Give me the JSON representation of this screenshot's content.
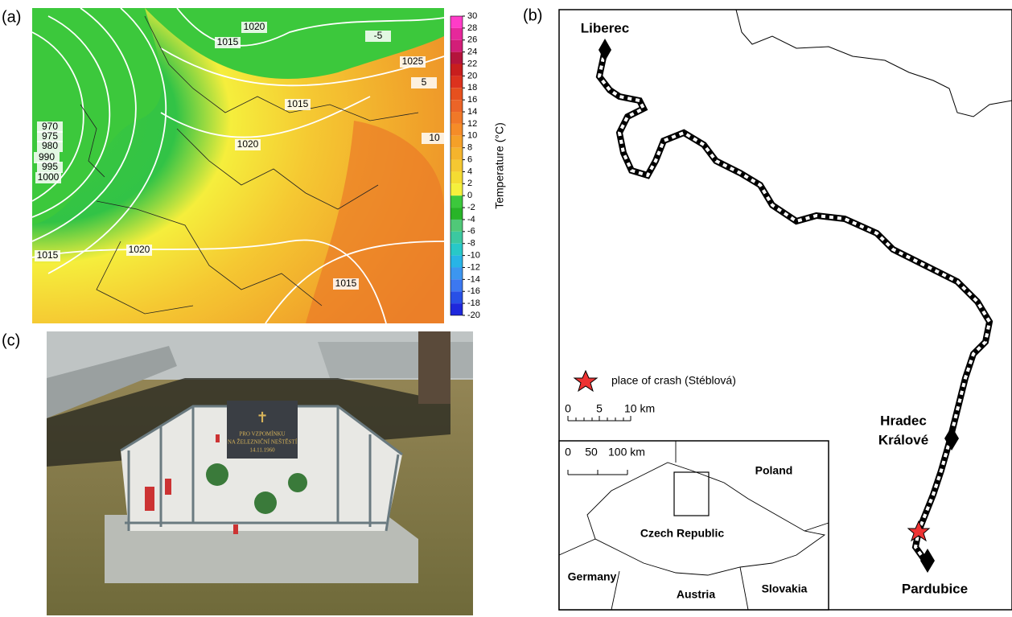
{
  "panel_labels": [
    "(a)",
    "(b)",
    "(c)"
  ],
  "weather_map": {
    "isobar_labels": [
      "1020",
      "1015",
      "1025",
      "1015",
      "1020",
      "970",
      "975",
      "980",
      "990",
      "995",
      "1000",
      "1015",
      "1020",
      "1015",
      "-5",
      "5",
      "10"
    ],
    "colorbar": {
      "label": "Temperature (°C)",
      "ticks": [
        30,
        28,
        26,
        24,
        22,
        20,
        18,
        16,
        14,
        12,
        10,
        8,
        6,
        4,
        2,
        0,
        -2,
        -4,
        -6,
        -8,
        -10,
        -12,
        -14,
        -16,
        -18,
        -20
      ],
      "colors": [
        "#ff3cc8",
        "#e6289b",
        "#d21e78",
        "#b4143c",
        "#c81e1e",
        "#dc321e",
        "#e6501e",
        "#eb6428",
        "#f07828",
        "#f58c28",
        "#f5a028",
        "#f5b42d",
        "#f5c832",
        "#f5dc32",
        "#f5f03c",
        "#3cc83c",
        "#28b428",
        "#50c878",
        "#3cc8a0",
        "#28c8c8",
        "#28b4e6",
        "#3c96f0",
        "#3c78f0",
        "#2850e6",
        "#1e28dc"
      ]
    }
  },
  "photo": {
    "inscription": [
      "PRO VZPOMÍNKU",
      "NA ŽELEZNIČNÍ NEŠTĚSTÍ",
      "14.11.1960"
    ]
  },
  "route_map": {
    "cities": {
      "liberec": "Liberec",
      "hradec": [
        "Hradec",
        "Králové"
      ],
      "pardubice": "Pardubice"
    },
    "legend": "place of crash (Stéblová)",
    "scale": [
      "0",
      "5",
      "10 km"
    ],
    "inset": {
      "scale": [
        "0",
        "50",
        "100 km"
      ],
      "countries": [
        "Poland",
        "Czech Republic",
        "Germany",
        "Austria",
        "Slovakia"
      ]
    }
  }
}
